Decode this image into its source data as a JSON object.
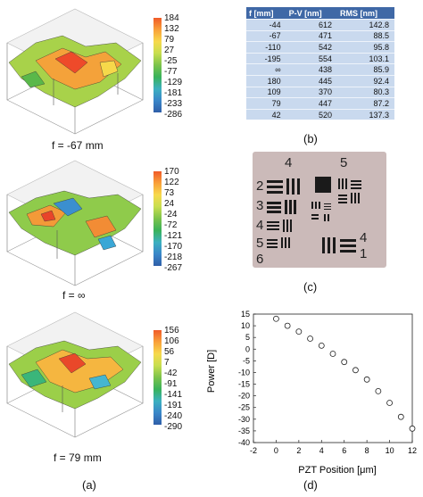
{
  "panel_a": {
    "plots": [
      {
        "colorbar": [
          "184",
          "132",
          "79",
          "27",
          "-25",
          "-77",
          "-129",
          "-181",
          "-233",
          "-286"
        ],
        "caption": "f = -67 mm"
      },
      {
        "colorbar": [
          "170",
          "122",
          "73",
          "24",
          "-24",
          "-72",
          "-121",
          "-170",
          "-218",
          "-267"
        ],
        "caption": "f = ∞"
      },
      {
        "colorbar": [
          "156",
          "106",
          "56",
          "7",
          "-42",
          "-91",
          "-141",
          "-191",
          "-240",
          "-290"
        ],
        "caption": "f = 79 mm"
      }
    ],
    "label": "(a)"
  },
  "panel_b": {
    "headers": [
      "f [mm]",
      "P-V [nm]",
      "RMS [nm]"
    ],
    "rows": [
      [
        "-44",
        "612",
        "142.8"
      ],
      [
        "-67",
        "471",
        "88.5"
      ],
      [
        "-110",
        "542",
        "95.8"
      ],
      [
        "-195",
        "554",
        "103.1"
      ],
      [
        "∞",
        "438",
        "85.9"
      ],
      [
        "180",
        "445",
        "92.4"
      ],
      [
        "109",
        "370",
        "80.3"
      ],
      [
        "79",
        "447",
        "87.2"
      ],
      [
        "42",
        "520",
        "137.3"
      ]
    ],
    "label": "(b)"
  },
  "panel_c": {
    "numbers": {
      "left_top": "4",
      "right_top": "5",
      "left_2": "2",
      "left_3": "3",
      "left_4": "4",
      "left_5": "5",
      "left_6": "6",
      "right_4": "4",
      "right_1": "1"
    },
    "label": "(c)"
  },
  "panel_d": {
    "label": "(d)",
    "chart_data": {
      "type": "scatter",
      "xlabel": "PZT Position [μm]",
      "ylabel": "Power [D]",
      "xlim": [
        -2,
        12
      ],
      "ylim": [
        -40,
        15
      ],
      "xticks": [
        "-2",
        "0",
        "2",
        "4",
        "6",
        "8",
        "10",
        "12"
      ],
      "yticks": [
        "-40",
        "-35",
        "-30",
        "-25",
        "-20",
        "-15",
        "-10",
        "-5",
        "0",
        "5",
        "10",
        "15"
      ],
      "grid": false,
      "series": [
        {
          "x": [
            0,
            1,
            2,
            3,
            4,
            5,
            6,
            7,
            8,
            9,
            10,
            11,
            12
          ],
          "y": [
            13,
            10,
            7.5,
            4.5,
            1.5,
            -2,
            -5.5,
            -9,
            -13,
            -18,
            -23,
            -29,
            -34
          ]
        }
      ]
    }
  }
}
